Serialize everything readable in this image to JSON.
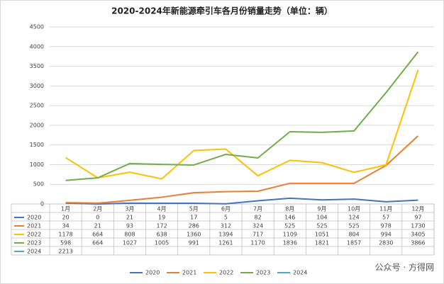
{
  "chart_data": {
    "type": "line",
    "title": "2020-2024年新能源牵引车各月份销量走势（单位：辆）",
    "categories": [
      "1月",
      "2月",
      "3月",
      "4月",
      "5月",
      "6月",
      "7月",
      "8月",
      "9月",
      "10月",
      "11月",
      "12月"
    ],
    "series": [
      {
        "name": "2020",
        "color": "#4472c4",
        "values": [
          20,
          0,
          21,
          19,
          17,
          5,
          82,
          146,
          104,
          124,
          57,
          97
        ]
      },
      {
        "name": "2021",
        "color": "#ed7d31",
        "values": [
          34,
          21,
          93,
          172,
          286,
          312,
          324,
          525,
          525,
          525,
          978,
          1730
        ]
      },
      {
        "name": "2022",
        "color": "#ffc000",
        "values": [
          1178,
          664,
          808,
          638,
          1360,
          1394,
          717,
          1109,
          1051,
          804,
          994,
          3405
        ]
      },
      {
        "name": "2023",
        "color": "#70ad47",
        "values": [
          598,
          664,
          1027,
          1005,
          991,
          1261,
          1170,
          1836,
          1821,
          1857,
          2830,
          3866
        ]
      },
      {
        "name": "2024",
        "color": "#4bacc6",
        "values": [
          2213,
          null,
          null,
          null,
          null,
          null,
          null,
          null,
          null,
          null,
          null,
          null
        ]
      }
    ],
    "ylim": [
      0,
      4500
    ],
    "yticks": [
      0,
      500,
      1000,
      1500,
      2000,
      2500,
      3000,
      3500,
      4000,
      4500
    ],
    "grid": true,
    "legend": "bottom",
    "watermark": "公众号 · 方得网"
  }
}
